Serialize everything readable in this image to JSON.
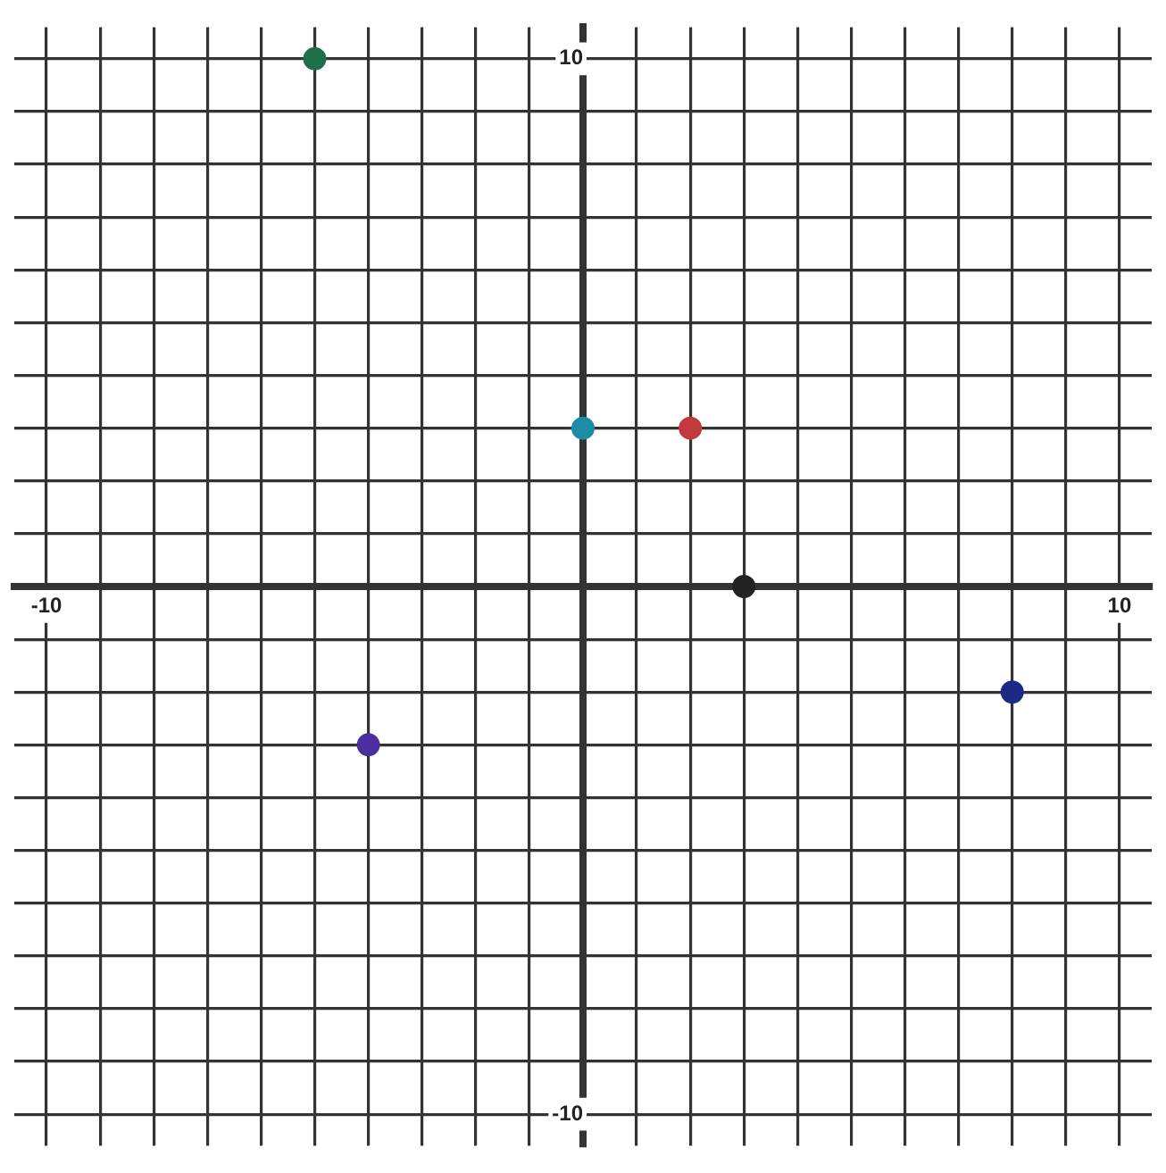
{
  "chart_data": {
    "type": "scatter",
    "x": [
      -5,
      -4,
      0,
      2,
      3,
      8
    ],
    "values": [
      10,
      -3,
      3,
      3,
      0,
      -2
    ],
    "colors": [
      "#1f6e4c",
      "#4b2fa0",
      "#1d8ca6",
      "#c23a3c",
      "#222222",
      "#1c2a86"
    ],
    "xlim": [
      -10.6,
      10.6
    ],
    "ylim": [
      -10.6,
      10.6
    ],
    "xticks": [
      -10,
      {
        "value": -9,
        "label": null
      },
      {
        "value": -8,
        "label": null
      },
      {
        "value": -7,
        "label": null
      },
      {
        "value": -6,
        "label": null
      },
      {
        "value": -5,
        "label": null
      },
      {
        "value": -4,
        "label": null
      },
      {
        "value": -3,
        "label": null
      },
      {
        "value": -2,
        "label": null
      },
      {
        "value": -1,
        "label": null
      },
      {
        "value": 0,
        "label": null
      },
      {
        "value": 1,
        "label": null
      },
      {
        "value": 2,
        "label": null
      },
      {
        "value": 3,
        "label": null
      },
      {
        "value": 4,
        "label": null
      },
      {
        "value": 5,
        "label": null
      },
      {
        "value": 6,
        "label": null
      },
      {
        "value": 7,
        "label": null
      },
      {
        "value": 8,
        "label": null
      },
      {
        "value": 9,
        "label": null
      },
      10
    ],
    "yticks": [
      -10,
      {
        "value": -9,
        "label": null
      },
      {
        "value": -8,
        "label": null
      },
      {
        "value": -7,
        "label": null
      },
      {
        "value": -6,
        "label": null
      },
      {
        "value": -5,
        "label": null
      },
      {
        "value": -4,
        "label": null
      },
      {
        "value": -3,
        "label": null
      },
      {
        "value": -2,
        "label": null
      },
      {
        "value": -1,
        "label": null
      },
      {
        "value": 0,
        "label": null
      },
      {
        "value": 1,
        "label": null
      },
      {
        "value": 2,
        "label": null
      },
      {
        "value": 3,
        "label": null
      },
      {
        "value": 4,
        "label": null
      },
      {
        "value": 5,
        "label": null
      },
      {
        "value": 6,
        "label": null
      },
      {
        "value": 7,
        "label": null
      },
      {
        "value": 8,
        "label": null
      },
      {
        "value": 9,
        "label": null
      },
      10
    ],
    "grid": true,
    "legend": false,
    "marker": "circle"
  }
}
